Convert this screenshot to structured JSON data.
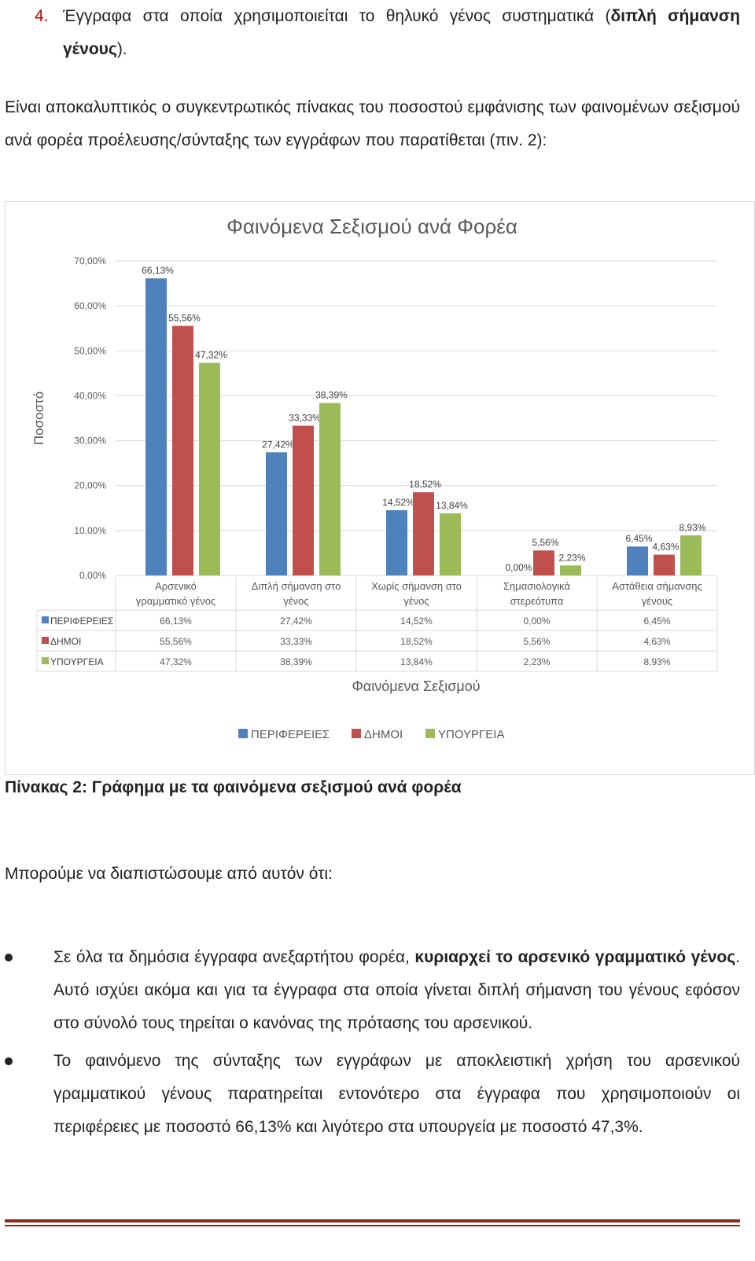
{
  "item4": {
    "number": "4.",
    "text_plain": "Έγγραφα στα οποία χρησιμοποιείται το θηλυκό γένος συστηματικά (",
    "text_bold": "διπλή σήμανση γένους",
    "text_end": ")."
  },
  "intro_paragraph": "Είναι αποκαλυπτικός ο συγκεντρωτικός πίνακας του ποσοστού εμφάνισης των φαινομένων σεξισμού ανά φορέα προέλευσης/σύνταξης των εγγράφων που παρατίθεται (πιν. 2):",
  "caption": "Πίνακας 2: Γράφημα με τα φαινόμενα σεξισμού ανά φορέα",
  "lead_sentence": "Μπορούμε να διαπιστώσουμε από αυτόν ότι:",
  "bullets": [
    {
      "plain1": "Σε όλα τα δημόσια έγγραφα ανεξαρτήτου φορέα, ",
      "bold": "κυριαρχεί το αρσενικό γραμματικό γένος",
      "plain2": ". Αυτό ισχύει ακόμα και για τα έγγραφα στα οποία γίνεται διπλή σήμανση του γένους εφόσον στο σύνολό τους τηρείται ο κανόνας της πρότασης του αρσενικού."
    },
    {
      "plain1": "Το φαινόμενο της σύνταξης των εγγράφων με αποκλειστική χρήση του αρσενικού γραμματικού γένους παρατηρείται εντονότερο στα έγγραφα που χρησιμοποιούν οι περιφέρειες με ποσοστό 66,13% και λιγότερο στα υπουργεία με ποσοστό 47,3%.",
      "bold": "",
      "plain2": ""
    }
  ],
  "chart_data": {
    "type": "bar",
    "title": "Φαινόμενα Σεξισμού ανά Φορέα",
    "xlabel": "Φαινόμενα Σεξισμού",
    "ylabel": "Ποσοστό",
    "ylim": [
      0,
      70
    ],
    "yticks": [
      "0,00%",
      "10,00%",
      "20,00%",
      "30,00%",
      "40,00%",
      "50,00%",
      "60,00%",
      "70,00%"
    ],
    "grid": true,
    "legend_position": "bottom",
    "categories": [
      [
        "Αρσενικό",
        "γραμματικό γένος"
      ],
      [
        "Διπλή σήμανση στο",
        "γένος"
      ],
      [
        "Χωρίς σήμανση στο",
        "γένος"
      ],
      [
        "Σημασιολογικά",
        "στερεότυπα"
      ],
      [
        "Αστάθεια σήμανσης",
        "γένους"
      ]
    ],
    "series": [
      {
        "name": "ΠΕΡΙΦΕΡΕΙΕΣ",
        "color": "#4f81bd",
        "values": [
          66.13,
          27.42,
          14.52,
          0.0,
          6.45
        ],
        "labels": [
          "66,13%",
          "27,42%",
          "14,52%",
          "0,00%",
          "6,45%"
        ]
      },
      {
        "name": "ΔΗΜΟΙ",
        "color": "#c0504d",
        "values": [
          55.56,
          33.33,
          18.52,
          5.56,
          4.63
        ],
        "labels": [
          "55,56%",
          "33,33%",
          "18,52%",
          "5,56%",
          "4,63%"
        ]
      },
      {
        "name": "ΥΠΟΥΡΓΕΙΑ",
        "color": "#9bbb59",
        "values": [
          47.32,
          38.39,
          13.84,
          2.23,
          8.93
        ],
        "labels": [
          "47,32%",
          "38,39%",
          "13,84%",
          "2,23%",
          "8,93%"
        ]
      }
    ],
    "data_table": true
  }
}
